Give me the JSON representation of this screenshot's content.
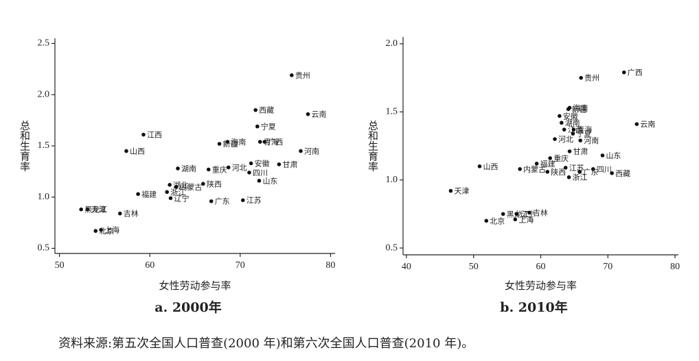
{
  "chart_data": [
    {
      "type": "scatter",
      "title": "a. 2000年",
      "xlabel": "女性劳动参与率",
      "ylabel": "总和生育率",
      "color": "#111",
      "xlim": [
        49.5,
        80.5
      ],
      "ylim": [
        0.45,
        2.55
      ],
      "xticks": [
        50,
        60,
        70,
        80
      ],
      "yticks": [
        {
          "value": 0.5,
          "label": "0.5"
        },
        {
          "value": 1,
          "label": "1.0"
        },
        1.5,
        {
          "value": 2,
          "label": "2.0"
        },
        2.5
      ],
      "labels": [
        "贵州",
        "云南",
        "西藏",
        "宁夏",
        "广西",
        "海南",
        "新疆",
        "青海",
        "河南",
        "甘肃",
        "安徽",
        "河北",
        "四川",
        "山东",
        "重庆",
        "湖南",
        "江西",
        "山西",
        "湖北",
        "内蒙古",
        "陕西",
        "浙江",
        "辽宁",
        "福建",
        "广东",
        "江苏",
        "吉林",
        "天津",
        "黑龙江",
        "上海",
        "北京"
      ],
      "x": [
        75.7,
        77.5,
        71.7,
        71.9,
        72.7,
        68.6,
        67.7,
        72.2,
        76.7,
        74.3,
        71.2,
        68.7,
        71.0,
        72.1,
        66.5,
        63.1,
        59.3,
        57.4,
        62.2,
        62.9,
        65.9,
        61.9,
        62.3,
        58.7,
        66.8,
        70.3,
        56.7,
        53.1,
        52.4,
        54.6,
        54.0
      ],
      "values": [
        2.19,
        1.81,
        1.85,
        1.69,
        1.54,
        1.54,
        1.52,
        1.54,
        1.45,
        1.32,
        1.33,
        1.29,
        1.24,
        1.16,
        1.27,
        1.28,
        1.61,
        1.45,
        1.12,
        1.1,
        1.13,
        1.05,
        0.99,
        1.03,
        0.96,
        0.97,
        0.84,
        0.88,
        0.88,
        0.68,
        0.67
      ]
    },
    {
      "type": "scatter",
      "title": "b. 2010年",
      "xlabel": "女性劳动参与率",
      "ylabel": "总和生育率",
      "color": "#111",
      "xlim": [
        39.5,
        80.5
      ],
      "ylim": [
        0.45,
        2.05
      ],
      "xticks": [
        40,
        50,
        60,
        70,
        80
      ],
      "yticks": [
        0.5,
        {
          "value": 1,
          "label": "1.0"
        },
        1.5,
        {
          "value": 2,
          "label": "2.0"
        }
      ],
      "labels": [
        "广西",
        "贵州",
        "新疆",
        "海南",
        "安徽",
        "湖南",
        "江西",
        "青海",
        "宁夏",
        "河北",
        "河南",
        "云南",
        "甘肃",
        "重庆",
        "山东",
        "福建",
        "江苏",
        "四川",
        "广东",
        "西藏",
        "内蒙古",
        "陕西",
        "浙江",
        "山西",
        "天津",
        "黑龙江",
        "辽宁",
        "吉林",
        "上海",
        "北京"
      ],
      "x": [
        72.4,
        66.0,
        64.1,
        64.3,
        62.8,
        63.1,
        63.5,
        64.9,
        64.8,
        62.1,
        65.9,
        74.3,
        64.3,
        61.4,
        69.2,
        59.4,
        63.7,
        67.8,
        65.8,
        70.6,
        56.9,
        61.0,
        64.2,
        50.9,
        46.6,
        54.4,
        56.4,
        58.3,
        56.2,
        51.9
      ],
      "values": [
        1.79,
        1.75,
        1.52,
        1.53,
        1.47,
        1.42,
        1.37,
        1.37,
        1.34,
        1.3,
        1.29,
        1.41,
        1.21,
        1.16,
        1.18,
        1.12,
        1.09,
        1.08,
        1.06,
        1.05,
        1.08,
        1.06,
        1.02,
        1.1,
        0.92,
        0.75,
        0.75,
        0.76,
        0.71,
        0.7
      ]
    }
  ],
  "source": "资料来源:第五次全国人口普查(2000 年)和第六次全国人口普查(2010 年)。"
}
